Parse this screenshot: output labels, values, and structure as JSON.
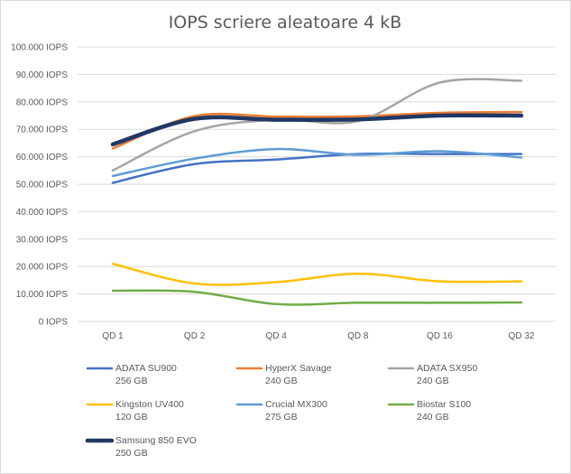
{
  "chart_data": {
    "type": "line",
    "title": "IOPS scriere aleatoare 4 kB",
    "xlabel": "",
    "ylabel": "",
    "categories": [
      "QD 1",
      "QD 2",
      "QD 4",
      "QD 8",
      "QD 16",
      "QD 32"
    ],
    "ylim": [
      0,
      100000
    ],
    "yticks": [
      0,
      10000,
      20000,
      30000,
      40000,
      50000,
      60000,
      70000,
      80000,
      90000,
      100000
    ],
    "ytick_labels": [
      "0 IOPS",
      "10.000 IOPS",
      "20.000 IOPS",
      "30.000 IOPS",
      "40.000 IOPS",
      "50.000 IOPS",
      "60.000 IOPS",
      "70.000 IOPS",
      "80.000 IOPS",
      "90.000 IOPS",
      "100.000 IOPS"
    ],
    "grid": "horizontal",
    "legend": "bottom",
    "smooth": true,
    "series": [
      {
        "name": "ADATA SU900",
        "capacity": "256 GB",
        "color": "#4472c4",
        "width": 2.5,
        "values": [
          50500,
          57300,
          59000,
          61000,
          61000,
          61000
        ]
      },
      {
        "name": "HyperX Savage",
        "capacity": "240 GB",
        "color": "#ed7d31",
        "width": 2.5,
        "values": [
          63000,
          74800,
          74600,
          74700,
          76000,
          76300
        ]
      },
      {
        "name": "ADATA SX950",
        "capacity": "240 GB",
        "color": "#a5a5a5",
        "width": 2.5,
        "values": [
          55000,
          69300,
          73500,
          73000,
          87000,
          87700
        ]
      },
      {
        "name": "Kingston UV400",
        "capacity": "120 GB",
        "color": "#ffc000",
        "width": 2.5,
        "values": [
          21000,
          13800,
          14300,
          17400,
          14600,
          14600
        ]
      },
      {
        "name": "Crucial MX300",
        "capacity": "275 GB",
        "color": "#5b9bd5",
        "width": 2.5,
        "values": [
          53000,
          59300,
          62800,
          60700,
          62000,
          59700
        ]
      },
      {
        "name": "Biostar S100",
        "capacity": "240 GB",
        "color": "#70ad47",
        "width": 2.5,
        "values": [
          11200,
          10800,
          6300,
          6800,
          6800,
          6900
        ]
      },
      {
        "name": "Samsung 850 EVO",
        "capacity": "250 GB",
        "color": "#203864",
        "width": 4.5,
        "values": [
          64500,
          73800,
          73500,
          73600,
          75000,
          75000
        ]
      }
    ]
  }
}
